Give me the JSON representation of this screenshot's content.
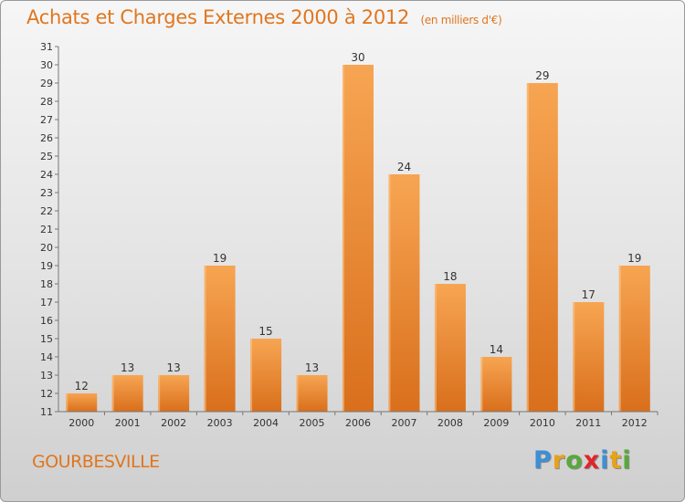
{
  "title": "Achats et Charges Externes 2000 à 2012",
  "subtitle": "(en milliers d'€)",
  "city": "GOURBESVILLE",
  "brand": {
    "letters": [
      "P",
      "r",
      "o",
      "x",
      "i",
      "t",
      "i"
    ],
    "colors": [
      "#3d8fd6",
      "#e8a21a",
      "#59a83b",
      "#e0252c",
      "#3d8fd6",
      "#e8a21a",
      "#59a83b"
    ]
  },
  "colors": {
    "accent": "#e0761f",
    "bar_top": "#f7a552",
    "bar_bottom": "#d96f1c"
  },
  "chart_data": {
    "type": "bar",
    "categories": [
      "2000",
      "2001",
      "2002",
      "2003",
      "2004",
      "2005",
      "2006",
      "2007",
      "2008",
      "2009",
      "2010",
      "2011",
      "2012"
    ],
    "values": [
      12,
      13,
      13,
      19,
      15,
      13,
      30,
      24,
      18,
      14,
      29,
      17,
      19
    ],
    "data_labels": [
      "12",
      "13",
      "13",
      "19",
      "15",
      "13",
      "30",
      "24",
      "18",
      "14",
      "29",
      "17",
      "19"
    ],
    "y_ticks": [
      11,
      12,
      13,
      14,
      15,
      16,
      17,
      18,
      19,
      20,
      21,
      22,
      23,
      24,
      25,
      26,
      27,
      28,
      29,
      30,
      31
    ],
    "ylim": [
      11,
      31
    ],
    "grid": false,
    "xlabel": "",
    "ylabel": ""
  }
}
